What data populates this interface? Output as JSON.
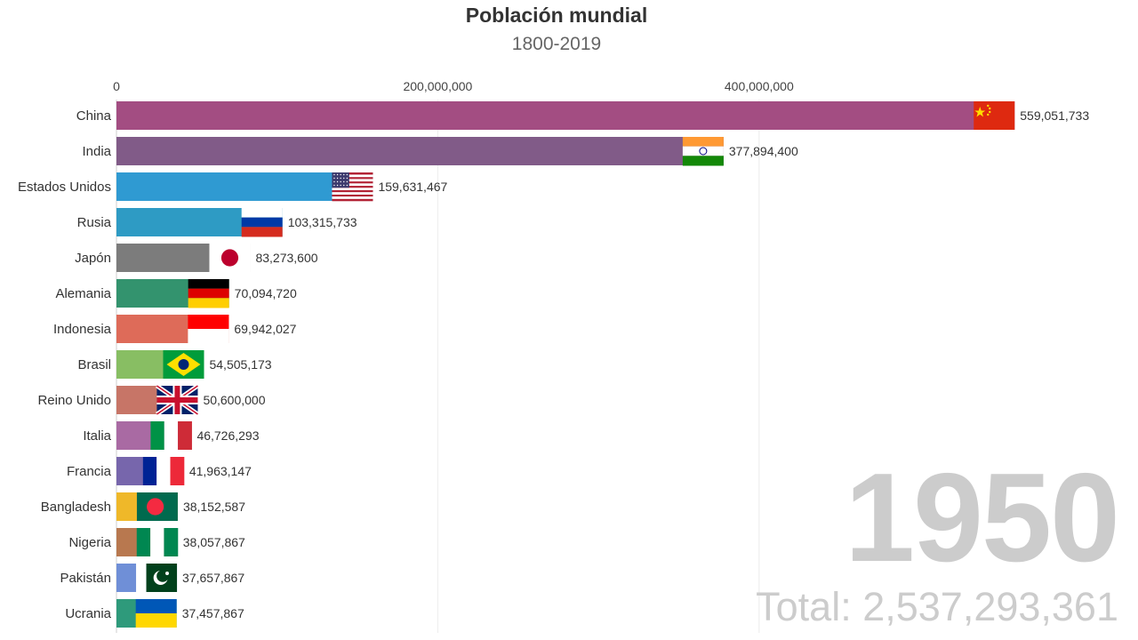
{
  "title": "Población mundial",
  "subtitle": "1800-2019",
  "year": "1950",
  "total_label": "Total: 2,537,293,361",
  "chart_data": {
    "type": "bar",
    "orientation": "horizontal",
    "title": "Población mundial",
    "subtitle": "1800-2019",
    "xlim": [
      0,
      565000000
    ],
    "x_ticks": [
      {
        "value": 0,
        "label": "0"
      },
      {
        "value": 200000000,
        "label": "200,000,000"
      },
      {
        "value": 400000000,
        "label": "400,000,000"
      }
    ],
    "grid": true,
    "categories": [
      "China",
      "India",
      "Estados Unidos",
      "Rusia",
      "Japón",
      "Alemania",
      "Indonesia",
      "Brasil",
      "Reino Unido",
      "Italia",
      "Francia",
      "Bangladesh",
      "Nigeria",
      "Pakistán",
      "Ucrania"
    ],
    "values": [
      559051733,
      377894400,
      159631467,
      103315733,
      83273600,
      70094720,
      69942027,
      54505173,
      50600000,
      46726293,
      41963147,
      38152587,
      38057867,
      37657867,
      37457867
    ],
    "value_labels": [
      "559,051,733",
      "377,894,400",
      "159,631,467",
      "103,315,733",
      "83,273,600",
      "70,094,720",
      "69,942,027",
      "54,505,173",
      "50,600,000",
      "46,726,293",
      "41,963,147",
      "38,152,587",
      "38,057,867",
      "37,657,867",
      "37,457,867"
    ],
    "colors": [
      "#a34d82",
      "#815b88",
      "#2f9ad2",
      "#2e9bc4",
      "#7c7c7c",
      "#33936e",
      "#de6b59",
      "#88be63",
      "#c77567",
      "#a96aa3",
      "#7766ac",
      "#efb829",
      "#b8784f",
      "#6f8fd7",
      "#2e9a7b"
    ],
    "flags": [
      "china",
      "india",
      "usa",
      "russia",
      "japan",
      "germany",
      "indonesia",
      "brazil",
      "uk",
      "italy",
      "france",
      "bangladesh",
      "nigeria",
      "pakistan",
      "ukraine"
    ]
  }
}
